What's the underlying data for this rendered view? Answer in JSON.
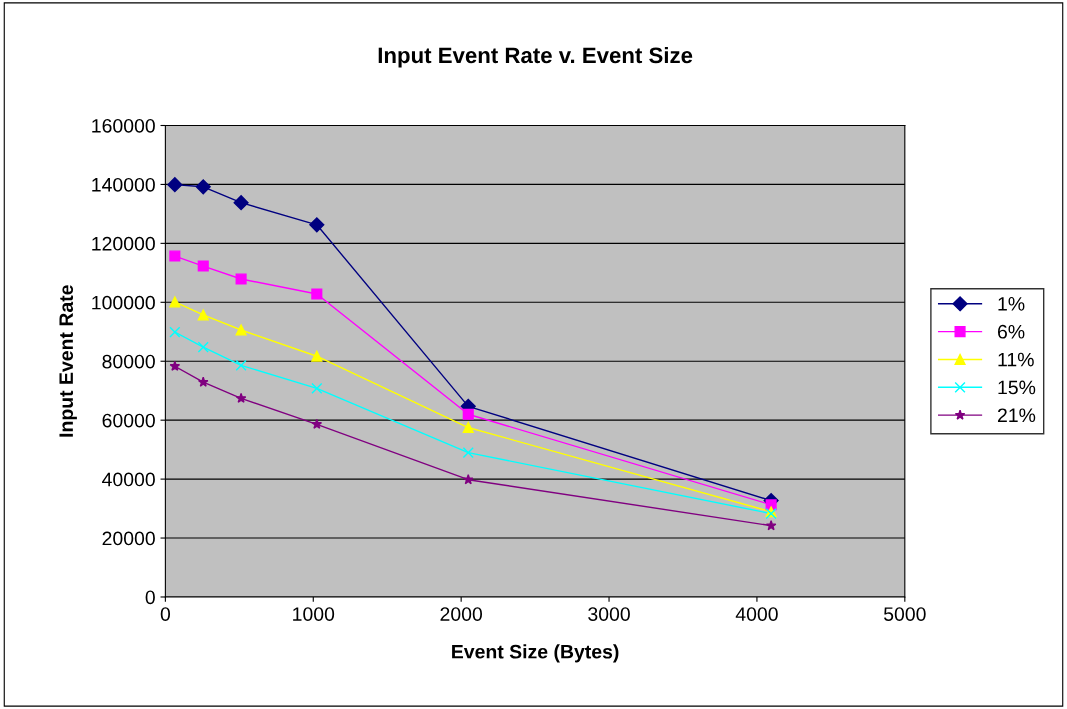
{
  "chart_data": {
    "type": "line",
    "title": "Input Event Rate v. Event Size",
    "xlabel": "Event Size (Bytes)",
    "ylabel": "Input Event Rate",
    "x": [
      64,
      256,
      512,
      1024,
      2048,
      4096
    ],
    "series": [
      {
        "name": "1%",
        "color": "#000080",
        "marker": "diamond",
        "values": [
          139900,
          139200,
          133800,
          126300,
          64700,
          32700
        ]
      },
      {
        "name": "6%",
        "color": "#ff00ff",
        "marker": "square",
        "values": [
          115700,
          112300,
          107900,
          102800,
          62000,
          31300
        ]
      },
      {
        "name": "11%",
        "color": "#ffff00",
        "marker": "triangle",
        "values": [
          100100,
          95700,
          90600,
          81700,
          57500,
          28900
        ]
      },
      {
        "name": "15%",
        "color": "#00ffff",
        "marker": "cross",
        "values": [
          89900,
          84800,
          78600,
          70800,
          49000,
          28300
        ]
      },
      {
        "name": "21%",
        "color": "#800080",
        "marker": "star",
        "values": [
          78300,
          72900,
          67400,
          58600,
          39800,
          24200
        ]
      }
    ],
    "xlim": [
      0,
      5000
    ],
    "xticks": [
      0,
      1000,
      2000,
      3000,
      4000,
      5000
    ],
    "ylim": [
      0,
      160000
    ],
    "yticks": [
      0,
      20000,
      40000,
      60000,
      80000,
      100000,
      120000,
      140000,
      160000
    ],
    "grid": "y",
    "legend": "right",
    "line_style": "solid"
  }
}
